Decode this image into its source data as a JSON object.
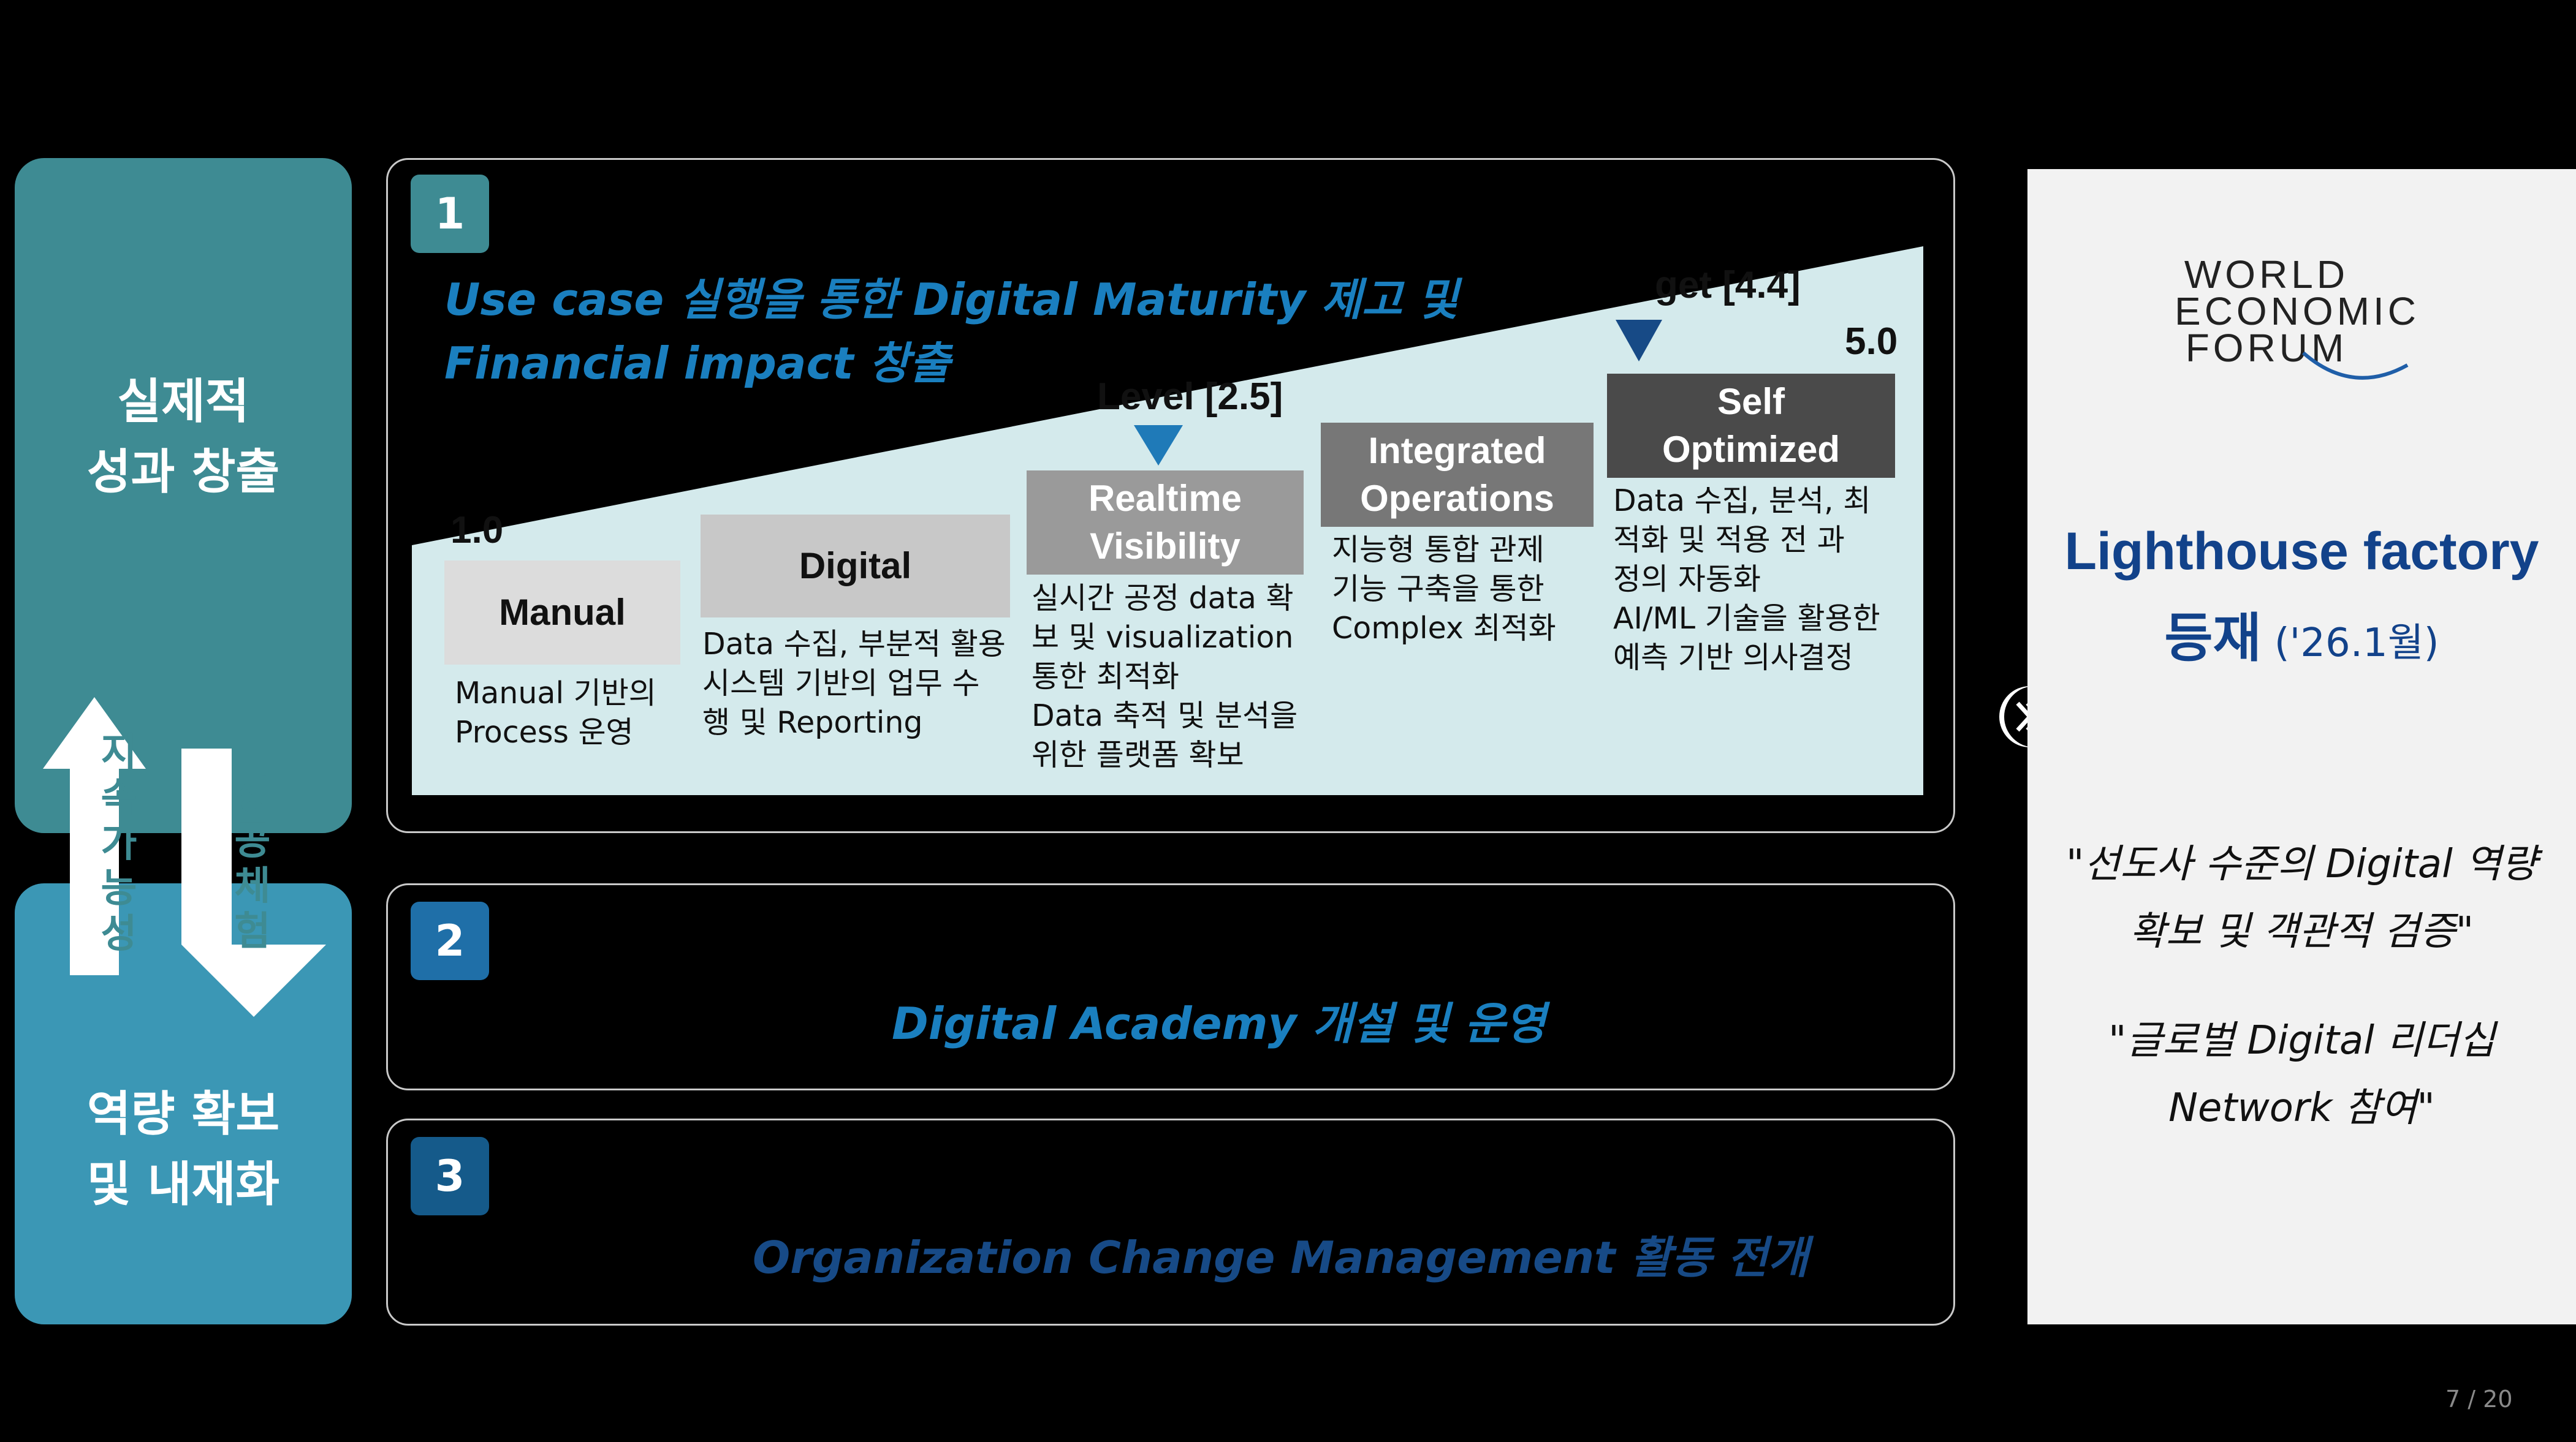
{
  "colors": {
    "background": "#000000",
    "pillar_top": "#3e8b93",
    "pillar_bottom": "#3b97b5",
    "badge_1": "#3e8b93",
    "badge_2": "#1f6fa8",
    "badge_3": "#155a8a",
    "title_blue": "#1a7fbf",
    "title_dark_blue": "#174a86",
    "wedge": "#d4eaec",
    "wef_title": "#12428a"
  },
  "pillars": {
    "top_label": "실제적\n성과 창출",
    "bottom_label": "역량 확보\n및 내재화"
  },
  "arrows": {
    "up_label": "지\n속\n가\n능\n성",
    "down_label": "성\n공\n체\n험"
  },
  "initiatives": [
    {
      "number": "1",
      "title_line1": "Use case 실행을 통한 Digital Maturity 제고 및",
      "title_line2": "Financial impact 창출"
    },
    {
      "number": "2",
      "title": "Digital Academy 개설 및 운영"
    },
    {
      "number": "3",
      "title": "Organization Change Management 활동 전개"
    }
  ],
  "maturity": {
    "scale_start": "1.0",
    "scale_end": "5.0",
    "current_label": "Level [2.5]",
    "target_label": "get [4.4]",
    "stages": [
      {
        "name": "Manual",
        "desc": "Manual 기반의\nProcess 운영"
      },
      {
        "name": "Digital",
        "desc": "Data 수집, 부분적 활용\n시스템 기반의 업무 수\n행 및 Reporting"
      },
      {
        "name": "Realtime\nVisibility",
        "desc": "실시간 공정 data 확\n보 및 visualization\n통한 최적화\nData 축적 및 분석을\n위한 플랫폼 확보"
      },
      {
        "name": "Integrated\nOperations",
        "desc": "지능형 통합 관제\n기능 구축을 통한\nComplex 최적화"
      },
      {
        "name": "Self\nOptimized",
        "desc": "Data 수집, 분석, 최\n적화 및 적용 전 과\n정의 자동화\nAI/ML 기술을 활용한\n예측 기반 의사결정"
      }
    ]
  },
  "wef": {
    "logo_line1": "WORLD",
    "logo_line2": "ECONOMIC",
    "logo_line3": "FORUM",
    "title_line1": "Lighthouse factory",
    "title_line2": "등재",
    "title_date": "('26.1월)",
    "quote1": "\"선도사 수준의 Digital 역량\n확보 및 객관적 검증\"",
    "quote2": "\"글로벌 Digital 리더십\nNetwork 참여\""
  },
  "page_number": "7 / 20"
}
